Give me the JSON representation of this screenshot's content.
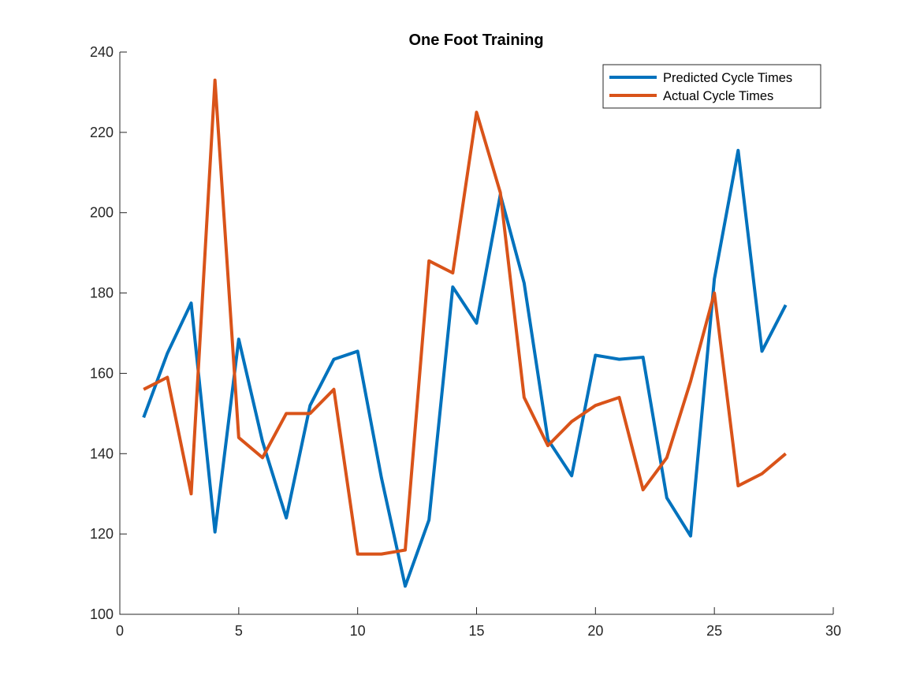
{
  "chart_data": {
    "type": "line",
    "title": "One Foot Training",
    "xlabel": "",
    "ylabel": "",
    "xlim": [
      0,
      30
    ],
    "ylim": [
      100,
      240
    ],
    "xticks": [
      0,
      5,
      10,
      15,
      20,
      25,
      30
    ],
    "yticks": [
      100,
      120,
      140,
      160,
      180,
      200,
      220,
      240
    ],
    "grid": false,
    "legend": "top-right",
    "x": [
      1,
      2,
      3,
      4,
      5,
      6,
      7,
      8,
      9,
      10,
      11,
      12,
      13,
      14,
      15,
      16,
      17,
      18,
      19,
      20,
      21,
      22,
      23,
      24,
      25,
      26,
      27,
      28
    ],
    "series": [
      {
        "name": "Predicted Cycle Times",
        "color": "#0072BD",
        "values": [
          149,
          165,
          177.5,
          120.5,
          168.5,
          143,
          124,
          152,
          163.5,
          165.5,
          134,
          107,
          123.5,
          181.5,
          172.5,
          204.5,
          182.5,
          143.5,
          134.5,
          164.5,
          163.5,
          164,
          129,
          119.5,
          183.5,
          215.5,
          165.5,
          177
        ]
      },
      {
        "name": "Actual Cycle Times",
        "color": "#D95319",
        "values": [
          156,
          159,
          130,
          233,
          144,
          139,
          150,
          150,
          156,
          115,
          115,
          116,
          188,
          185,
          225,
          205,
          154,
          142,
          148,
          152,
          154,
          131,
          139,
          158,
          180,
          132,
          135,
          140
        ]
      }
    ]
  }
}
